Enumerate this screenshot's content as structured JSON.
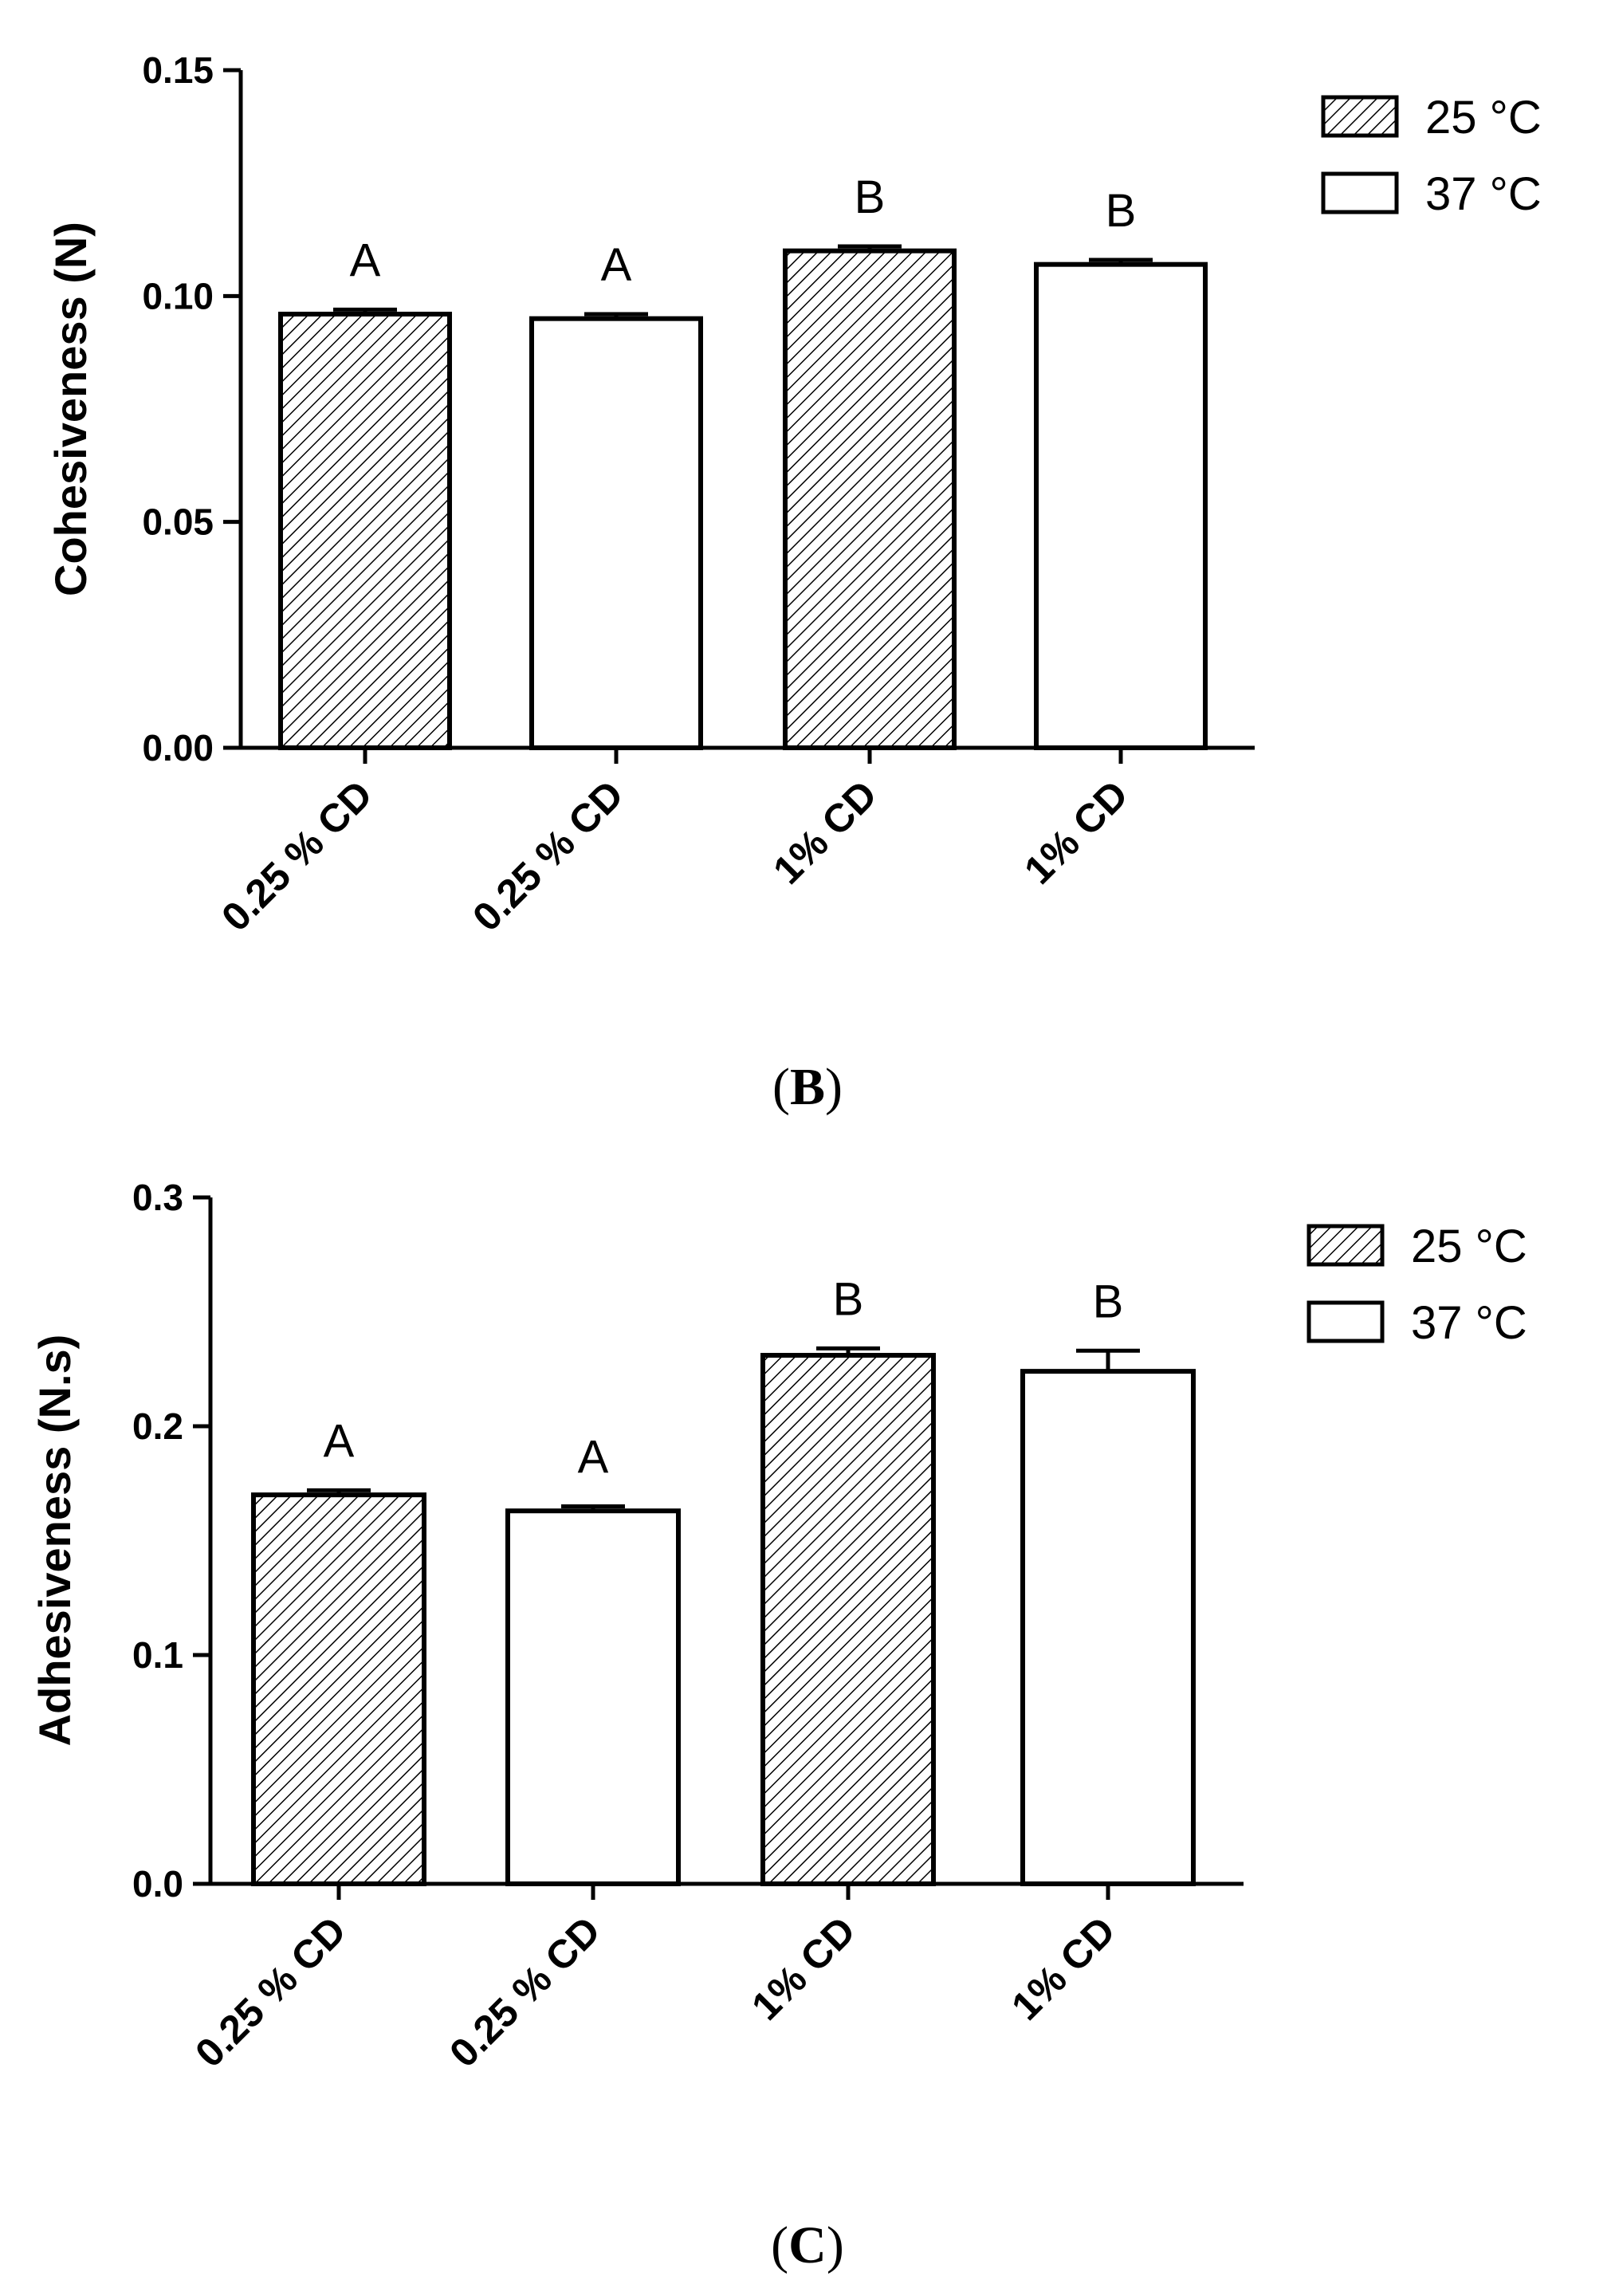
{
  "colors": {
    "axis": "#000000",
    "bar_fill_37": "#ffffff",
    "hatch": "#000000",
    "background": "#ffffff"
  },
  "chart_data": [
    {
      "panel": "B",
      "type": "bar",
      "ylabel": "Cohesiveness (N)",
      "xlabel": "",
      "ylim": [
        0,
        0.15
      ],
      "yticks": [
        "0.00",
        "0.05",
        "0.10",
        "0.15"
      ],
      "ytick_values": [
        0,
        0.05,
        0.1,
        0.15
      ],
      "categories": [
        "0.25 % CD",
        "0.25 % CD",
        "1% CD",
        "1% CD"
      ],
      "bars": [
        {
          "category": "0.25 % CD",
          "series": "25 °C",
          "value": 0.096,
          "error": 0.001,
          "label": "A"
        },
        {
          "category": "0.25 % CD",
          "series": "37 °C",
          "value": 0.095,
          "error": 0.001,
          "label": "A"
        },
        {
          "category": "1% CD",
          "series": "25 °C",
          "value": 0.11,
          "error": 0.001,
          "label": "B"
        },
        {
          "category": "1% CD",
          "series": "37 °C",
          "value": 0.107,
          "error": 0.001,
          "label": "B"
        }
      ],
      "legend": [
        {
          "name": "25 °C",
          "pattern": "hatched"
        },
        {
          "name": "37 °C",
          "pattern": "open"
        }
      ],
      "legend_position": "top-right"
    },
    {
      "panel": "C",
      "type": "bar",
      "ylabel": "Adhesiveness (N.s)",
      "xlabel": "",
      "ylim": [
        0,
        0.3
      ],
      "yticks": [
        "0.0",
        "0.1",
        "0.2",
        "0.3"
      ],
      "ytick_values": [
        0,
        0.1,
        0.2,
        0.3
      ],
      "categories": [
        "0.25 % CD",
        "0.25 % CD",
        "1% CD",
        "1% CD"
      ],
      "bars": [
        {
          "category": "0.25 % CD",
          "series": "25 °C",
          "value": 0.17,
          "error": 0.002,
          "label": "A"
        },
        {
          "category": "0.25 % CD",
          "series": "37 °C",
          "value": 0.163,
          "error": 0.002,
          "label": "A"
        },
        {
          "category": "1% CD",
          "series": "25 °C",
          "value": 0.231,
          "error": 0.003,
          "label": "B"
        },
        {
          "category": "1% CD",
          "series": "37 °C",
          "value": 0.224,
          "error": 0.009,
          "label": "B"
        }
      ],
      "legend": [
        {
          "name": "25 °C",
          "pattern": "hatched"
        },
        {
          "name": "37 °C",
          "pattern": "open"
        }
      ],
      "legend_position": "top-right"
    }
  ],
  "panel_labels": {
    "B": {
      "open": "(",
      "letter": "B",
      "close": ")"
    },
    "C": {
      "open": "(",
      "letter": "C",
      "close": ")"
    }
  }
}
